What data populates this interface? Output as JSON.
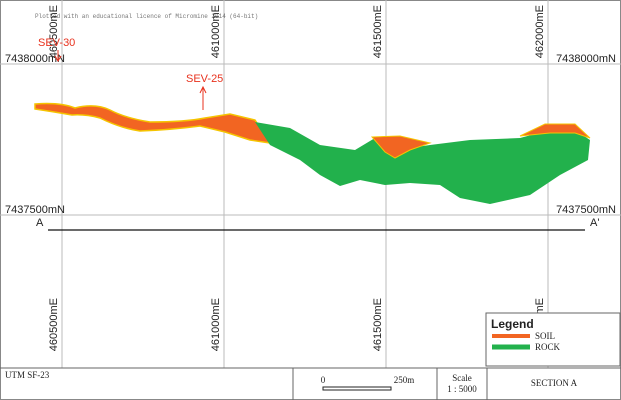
{
  "watermark": "Plotted with an educational licence of Micromine 2014 (64-bit)",
  "grid": {
    "eastings": [
      "460500mE",
      "461000mE",
      "461500mE",
      "462000mE"
    ],
    "northings": [
      "7438000mN",
      "7437500mN"
    ]
  },
  "boreholes": [
    "SEV-30",
    "SEV-25"
  ],
  "section_line": {
    "start": "A",
    "end": "A'"
  },
  "legend": {
    "title": "Legend",
    "items": [
      "SOIL",
      "ROCK"
    ]
  },
  "title_block": {
    "sheet": "UTM SF-23",
    "scale_bar": {
      "start": "0",
      "end": "250m"
    },
    "scale_label": "Scale",
    "scale": "1 : 5000",
    "section": "SECTION A"
  }
}
